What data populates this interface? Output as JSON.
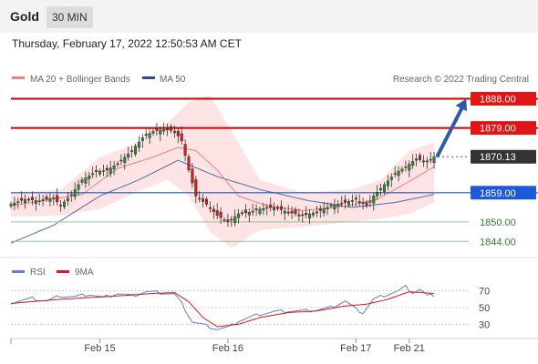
{
  "header": {
    "instrument": "Gold",
    "timeframe": "30 MIN",
    "timestamp": "Thursday, February 17, 2022 12:50:53 AM CET"
  },
  "legend": {
    "ma20_bb": "MA 20 + Bollinger Bands",
    "ma50": "MA 50",
    "copyright": "Research © 2022 Trading Central",
    "rsi": "RSI",
    "ma9": "9MA"
  },
  "colors": {
    "bull": "#2e8b2e",
    "bear": "#cc1f1f",
    "bollinger_fill": "#fde3e3",
    "ma20": "#f08080",
    "ma50": "#4a6fa5",
    "resistance": "#cc0000",
    "support": "#1f5ad6",
    "minor_support": "#8cc88c",
    "rsi": "#5a7fe0",
    "rsi_ma": "#e01515",
    "arrow": "#2f5aa8"
  },
  "chart_data": [
    {
      "type": "candlestick",
      "title": "Gold",
      "x_ticks": [
        "Feb 15",
        "Feb 16",
        "Feb 17",
        "Feb 21"
      ],
      "y_range": [
        1841.0,
        1891.5
      ],
      "current_price": 1870.13,
      "levels": [
        {
          "label": "1888.00",
          "value": 1888.0,
          "kind": "resistance"
        },
        {
          "label": "1879.00",
          "value": 1879.0,
          "kind": "resistance"
        },
        {
          "label": "1870.13",
          "value": 1870.13,
          "kind": "current"
        },
        {
          "label": "1859.00",
          "value": 1859.0,
          "kind": "pivot"
        },
        {
          "label": "1850.00",
          "value": 1850.0,
          "kind": "support"
        },
        {
          "label": "1844.00",
          "value": 1844.0,
          "kind": "support"
        }
      ],
      "anchors": [
        {
          "i": 0,
          "c": 1855.5
        },
        {
          "i": 4,
          "c": 1857.0
        },
        {
          "i": 8,
          "c": 1856.5
        },
        {
          "i": 12,
          "c": 1857.5
        },
        {
          "i": 14,
          "c": 1855.0
        },
        {
          "i": 17,
          "c": 1858.5
        },
        {
          "i": 20,
          "c": 1863.0
        },
        {
          "i": 24,
          "c": 1865.5
        },
        {
          "i": 27,
          "c": 1866.0
        },
        {
          "i": 30,
          "c": 1868.0
        },
        {
          "i": 34,
          "c": 1872.0
        },
        {
          "i": 37,
          "c": 1876.0
        },
        {
          "i": 40,
          "c": 1878.0
        },
        {
          "i": 43,
          "c": 1878.5
        },
        {
          "i": 46,
          "c": 1878.0
        },
        {
          "i": 48,
          "c": 1875.0
        },
        {
          "i": 50,
          "c": 1866.0
        },
        {
          "i": 52,
          "c": 1858.0
        },
        {
          "i": 55,
          "c": 1855.5
        },
        {
          "i": 58,
          "c": 1852.0
        },
        {
          "i": 61,
          "c": 1850.0
        },
        {
          "i": 64,
          "c": 1852.5
        },
        {
          "i": 67,
          "c": 1853.0
        },
        {
          "i": 70,
          "c": 1854.0
        },
        {
          "i": 74,
          "c": 1854.5
        },
        {
          "i": 78,
          "c": 1853.0
        },
        {
          "i": 82,
          "c": 1852.0
        },
        {
          "i": 86,
          "c": 1853.0
        },
        {
          "i": 90,
          "c": 1855.0
        },
        {
          "i": 94,
          "c": 1856.0
        },
        {
          "i": 97,
          "c": 1857.0
        },
        {
          "i": 100,
          "c": 1855.0
        },
        {
          "i": 102,
          "c": 1858.0
        },
        {
          "i": 105,
          "c": 1861.5
        },
        {
          "i": 108,
          "c": 1865.0
        },
        {
          "i": 111,
          "c": 1867.0
        },
        {
          "i": 114,
          "c": 1869.5
        },
        {
          "i": 117,
          "c": 1868.5
        },
        {
          "i": 119,
          "c": 1870.13
        }
      ],
      "ma20_anchors": [
        {
          "i": 0,
          "v": 1855.0
        },
        {
          "i": 20,
          "v": 1858.5
        },
        {
          "i": 30,
          "v": 1866.5
        },
        {
          "i": 40,
          "v": 1870.0
        },
        {
          "i": 47,
          "v": 1873.0
        },
        {
          "i": 52,
          "v": 1872.0
        },
        {
          "i": 58,
          "v": 1866.0
        },
        {
          "i": 64,
          "v": 1858.0
        },
        {
          "i": 72,
          "v": 1855.0
        },
        {
          "i": 82,
          "v": 1853.5
        },
        {
          "i": 95,
          "v": 1855.0
        },
        {
          "i": 103,
          "v": 1857.0
        },
        {
          "i": 112,
          "v": 1862.5
        },
        {
          "i": 119,
          "v": 1867.0
        }
      ],
      "ma50_anchors": [
        {
          "i": 0,
          "v": 1843.5
        },
        {
          "i": 12,
          "v": 1849.0
        },
        {
          "i": 25,
          "v": 1858.0
        },
        {
          "i": 36,
          "v": 1863.0
        },
        {
          "i": 47,
          "v": 1869.0
        },
        {
          "i": 58,
          "v": 1864.0
        },
        {
          "i": 70,
          "v": 1860.0
        },
        {
          "i": 84,
          "v": 1856.5
        },
        {
          "i": 96,
          "v": 1854.5
        },
        {
          "i": 108,
          "v": 1856.0
        },
        {
          "i": 119,
          "v": 1858.5
        }
      ],
      "bb_upper_anchors": [
        {
          "i": 0,
          "v": 1859.0
        },
        {
          "i": 14,
          "v": 1860.0
        },
        {
          "i": 25,
          "v": 1870.0
        },
        {
          "i": 36,
          "v": 1874.5
        },
        {
          "i": 44,
          "v": 1880.5
        },
        {
          "i": 50,
          "v": 1887.0
        },
        {
          "i": 56,
          "v": 1889.0
        },
        {
          "i": 62,
          "v": 1878.0
        },
        {
          "i": 70,
          "v": 1863.0
        },
        {
          "i": 82,
          "v": 1859.0
        },
        {
          "i": 96,
          "v": 1860.0
        },
        {
          "i": 104,
          "v": 1863.0
        },
        {
          "i": 112,
          "v": 1872.0
        },
        {
          "i": 119,
          "v": 1874.5
        }
      ],
      "bb_lower_anchors": [
        {
          "i": 0,
          "v": 1851.5
        },
        {
          "i": 14,
          "v": 1852.0
        },
        {
          "i": 25,
          "v": 1854.0
        },
        {
          "i": 36,
          "v": 1859.5
        },
        {
          "i": 44,
          "v": 1863.0
        },
        {
          "i": 50,
          "v": 1858.0
        },
        {
          "i": 56,
          "v": 1847.0
        },
        {
          "i": 62,
          "v": 1842.0
        },
        {
          "i": 70,
          "v": 1847.5
        },
        {
          "i": 82,
          "v": 1848.5
        },
        {
          "i": 96,
          "v": 1850.0
        },
        {
          "i": 104,
          "v": 1851.0
        },
        {
          "i": 112,
          "v": 1852.5
        },
        {
          "i": 119,
          "v": 1856.0
        }
      ],
      "candle_count": 120,
      "x_tick_positions": [
        25,
        61,
        97,
        112
      ],
      "projection_arrow": {
        "from_index": 120,
        "from_value": 1870.5,
        "to_index": 128,
        "to_value": 1888.0
      }
    },
    {
      "type": "line",
      "title": "RSI",
      "y_ticks": [
        70,
        50,
        30
      ],
      "y_range": [
        15,
        85
      ],
      "series": [
        {
          "name": "RSI",
          "anchors": [
            {
              "i": 0,
              "v": 56
            },
            {
              "i": 6,
              "v": 61
            },
            {
              "i": 10,
              "v": 58
            },
            {
              "i": 14,
              "v": 64
            },
            {
              "i": 18,
              "v": 63
            },
            {
              "i": 22,
              "v": 66
            },
            {
              "i": 26,
              "v": 62
            },
            {
              "i": 30,
              "v": 67
            },
            {
              "i": 34,
              "v": 64
            },
            {
              "i": 38,
              "v": 69
            },
            {
              "i": 42,
              "v": 68
            },
            {
              "i": 46,
              "v": 66
            },
            {
              "i": 48,
              "v": 55
            },
            {
              "i": 51,
              "v": 33
            },
            {
              "i": 55,
              "v": 28
            },
            {
              "i": 58,
              "v": 24
            },
            {
              "i": 61,
              "v": 26
            },
            {
              "i": 64,
              "v": 34
            },
            {
              "i": 67,
              "v": 38
            },
            {
              "i": 70,
              "v": 42
            },
            {
              "i": 74,
              "v": 45
            },
            {
              "i": 78,
              "v": 46
            },
            {
              "i": 82,
              "v": 46
            },
            {
              "i": 86,
              "v": 47
            },
            {
              "i": 90,
              "v": 50
            },
            {
              "i": 94,
              "v": 58
            },
            {
              "i": 97,
              "v": 48
            },
            {
              "i": 99,
              "v": 44
            },
            {
              "i": 102,
              "v": 60
            },
            {
              "i": 106,
              "v": 66
            },
            {
              "i": 109,
              "v": 70
            },
            {
              "i": 111,
              "v": 75
            },
            {
              "i": 113,
              "v": 68
            },
            {
              "i": 115,
              "v": 72
            },
            {
              "i": 117,
              "v": 64
            },
            {
              "i": 119,
              "v": 65
            }
          ]
        },
        {
          "name": "9MA",
          "anchors": [
            {
              "i": 0,
              "v": 55
            },
            {
              "i": 14,
              "v": 60
            },
            {
              "i": 30,
              "v": 64
            },
            {
              "i": 40,
              "v": 67
            },
            {
              "i": 46,
              "v": 68
            },
            {
              "i": 50,
              "v": 57
            },
            {
              "i": 54,
              "v": 38
            },
            {
              "i": 58,
              "v": 27
            },
            {
              "i": 64,
              "v": 30
            },
            {
              "i": 70,
              "v": 38
            },
            {
              "i": 78,
              "v": 44
            },
            {
              "i": 86,
              "v": 46
            },
            {
              "i": 94,
              "v": 52
            },
            {
              "i": 100,
              "v": 54
            },
            {
              "i": 106,
              "v": 60
            },
            {
              "i": 112,
              "v": 69
            },
            {
              "i": 119,
              "v": 67
            }
          ]
        }
      ]
    }
  ]
}
